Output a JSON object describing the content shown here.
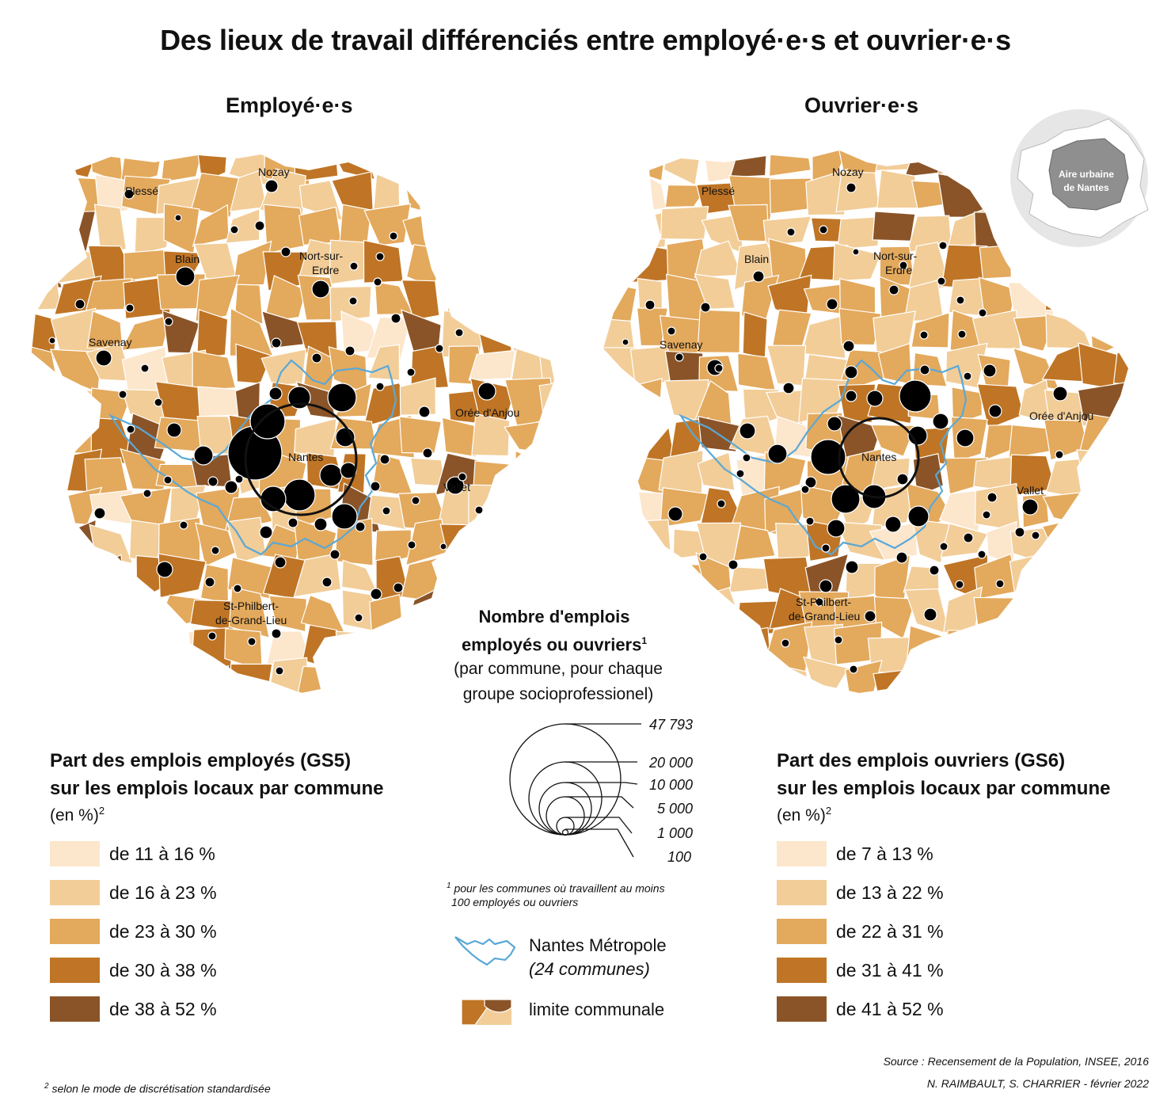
{
  "title": "Des lieux de travail différenciés entre employé·e·s et ouvrier·e·s",
  "maps": {
    "left_title": "Employé·e·s",
    "right_title": "Ouvrier·e·s"
  },
  "places": {
    "plesse": "Plessé",
    "nozay": "Nozay",
    "blain": "Blain",
    "nort_1": "Nort-sur-",
    "nort_2": "Erdre",
    "savenay": "Savenay",
    "nantes": "Nantes",
    "oree": "Orée d'Anjou",
    "vallet": "Vallet",
    "stphil_1": "St-Philbert-",
    "stphil_2": "de-Grand-Lieu"
  },
  "inset": {
    "line1": "Aire urbaine",
    "line2": "de Nantes"
  },
  "legend_left": {
    "title_1": "Part des emplois employés (GS5)",
    "title_2": "sur les emplois locaux par commune",
    "unit": "(en %)",
    "unit_sup": "2",
    "classes": [
      {
        "label": "de 11 à 16 %",
        "color": "#fce6cc"
      },
      {
        "label": "de 16 à 23 %",
        "color": "#f2cd98"
      },
      {
        "label": "de 23 à 30 %",
        "color": "#e3a95c"
      },
      {
        "label": "de 30 à 38 %",
        "color": "#bf7525"
      },
      {
        "label": "de 38 à 52 %",
        "color": "#8a5428"
      }
    ]
  },
  "legend_right": {
    "title_1": "Part des emplois ouvriers (GS6)",
    "title_2": "sur les emplois locaux par commune",
    "unit": "(en %)",
    "unit_sup": "2",
    "classes": [
      {
        "label": "de 7 à 13 %",
        "color": "#fce6cc"
      },
      {
        "label": "de 13 à 22 %",
        "color": "#f2cd98"
      },
      {
        "label": "de 22 à 31 %",
        "color": "#e3a95c"
      },
      {
        "label": "de 31 à 41 %",
        "color": "#bf7525"
      },
      {
        "label": "de 41 à 52 %",
        "color": "#8a5428"
      }
    ]
  },
  "size_legend": {
    "title_1": "Nombre d'emplois",
    "title_2": "employés ou ouvriers",
    "title_sup": "1",
    "sub_1": "(par commune, pour chaque",
    "sub_2": "groupe socioprofessionel)",
    "values": [
      "47 793",
      "20 000",
      "10 000",
      "5 000",
      "1 000",
      "100"
    ],
    "footnote_sup": "1",
    "footnote_1": "pour les communes où travaillent au moins",
    "footnote_2": "100 employés ou ouvriers"
  },
  "metro_legend": {
    "label": "Nantes Métropole",
    "sub": "(24 communes)",
    "color": "#5aa8d6"
  },
  "boundary_legend": {
    "label": "limite communale"
  },
  "footnote_2": {
    "sup": "2",
    "text": "selon le mode de discrétisation standardisée"
  },
  "source": "Source : Recensement de la Population,  INSEE, 2016",
  "credit": "N. RAIMBAULT, S. CHARRIER - février 2022"
}
